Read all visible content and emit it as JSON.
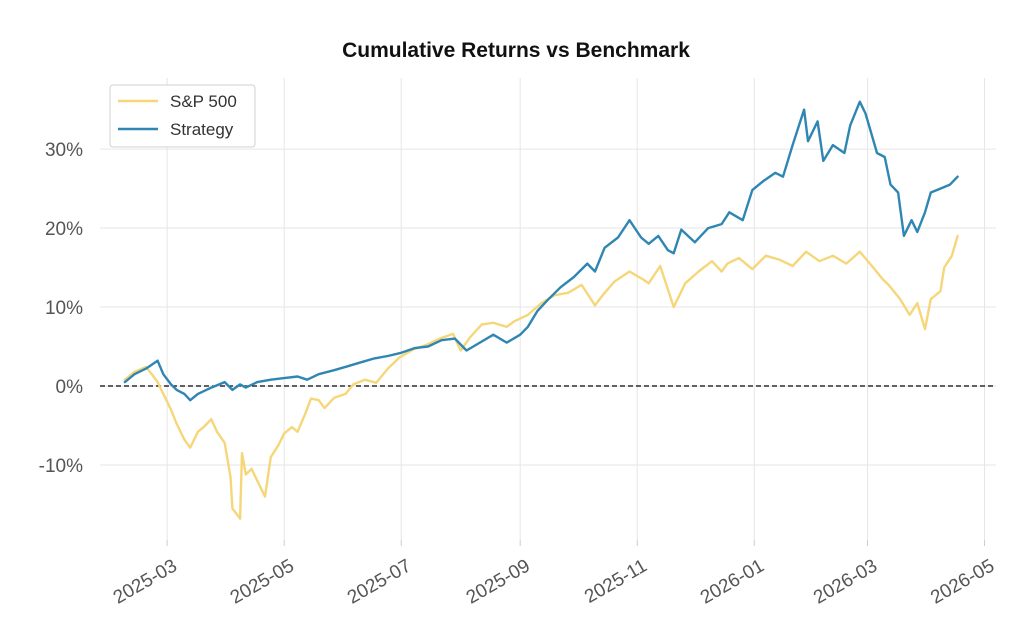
{
  "chart_data": {
    "type": "line",
    "title": "Cumulative Returns vs Benchmark",
    "xlabel": "",
    "ylabel": "",
    "xlim": [
      "2025-01-25",
      "2026-05-07"
    ],
    "ylim": [
      -19.5,
      39
    ],
    "grid": true,
    "legend_position": "top-left",
    "x_ticks": [
      "2025-03-01",
      "2025-05-01",
      "2025-07-01",
      "2025-09-01",
      "2025-11-01",
      "2026-01-01",
      "2026-03-01",
      "2026-05-01"
    ],
    "x_tick_labels": [
      "2025-03",
      "2025-05",
      "2025-07",
      "2025-09",
      "2025-11",
      "2026-01",
      "2026-03",
      "2026-05"
    ],
    "y_ticks": [
      -10,
      0,
      10,
      20,
      30
    ],
    "y_tick_labels": [
      "-10%",
      "0%",
      "10%",
      "20%",
      "30%"
    ],
    "reference_line": {
      "y": 0,
      "style": "dashed",
      "color": "#000000"
    },
    "series": [
      {
        "name": "S&P 500",
        "color": "#f5d77a",
        "points": [
          [
            "2025-02-07",
            0.8
          ],
          [
            "2025-02-12",
            1.8
          ],
          [
            "2025-02-18",
            2.4
          ],
          [
            "2025-02-21",
            1.5
          ],
          [
            "2025-02-24",
            0.5
          ],
          [
            "2025-02-27",
            -1.0
          ],
          [
            "2025-03-03",
            -3.0
          ],
          [
            "2025-03-06",
            -4.8
          ],
          [
            "2025-03-10",
            -6.8
          ],
          [
            "2025-03-13",
            -7.8
          ],
          [
            "2025-03-17",
            -5.8
          ],
          [
            "2025-03-20",
            -5.2
          ],
          [
            "2025-03-24",
            -4.2
          ],
          [
            "2025-03-27",
            -5.8
          ],
          [
            "2025-03-31",
            -7.2
          ],
          [
            "2025-04-03",
            -11.5
          ],
          [
            "2025-04-04",
            -15.5
          ],
          [
            "2025-04-08",
            -16.8
          ],
          [
            "2025-04-09",
            -8.5
          ],
          [
            "2025-04-11",
            -11.2
          ],
          [
            "2025-04-14",
            -10.5
          ],
          [
            "2025-04-17",
            -12.0
          ],
          [
            "2025-04-21",
            -14.0
          ],
          [
            "2025-04-24",
            -9.0
          ],
          [
            "2025-04-28",
            -7.5
          ],
          [
            "2025-05-01",
            -6.0
          ],
          [
            "2025-05-05",
            -5.2
          ],
          [
            "2025-05-08",
            -5.8
          ],
          [
            "2025-05-12",
            -3.5
          ],
          [
            "2025-05-15",
            -1.6
          ],
          [
            "2025-05-19",
            -1.8
          ],
          [
            "2025-05-22",
            -2.8
          ],
          [
            "2025-05-27",
            -1.5
          ],
          [
            "2025-06-02",
            -1.0
          ],
          [
            "2025-06-06",
            0.2
          ],
          [
            "2025-06-12",
            0.8
          ],
          [
            "2025-06-18",
            0.4
          ],
          [
            "2025-06-24",
            2.2
          ],
          [
            "2025-06-30",
            3.6
          ],
          [
            "2025-07-07",
            4.6
          ],
          [
            "2025-07-14",
            5.2
          ],
          [
            "2025-07-21",
            6.0
          ],
          [
            "2025-07-28",
            6.6
          ],
          [
            "2025-08-01",
            4.5
          ],
          [
            "2025-08-06",
            6.2
          ],
          [
            "2025-08-12",
            7.8
          ],
          [
            "2025-08-18",
            8.0
          ],
          [
            "2025-08-25",
            7.5
          ],
          [
            "2025-08-29",
            8.2
          ],
          [
            "2025-09-05",
            9.0
          ],
          [
            "2025-09-12",
            10.5
          ],
          [
            "2025-09-19",
            11.5
          ],
          [
            "2025-09-26",
            11.8
          ],
          [
            "2025-10-03",
            12.8
          ],
          [
            "2025-10-10",
            10.2
          ],
          [
            "2025-10-14",
            11.5
          ],
          [
            "2025-10-20",
            13.2
          ],
          [
            "2025-10-28",
            14.5
          ],
          [
            "2025-11-04",
            13.5
          ],
          [
            "2025-11-07",
            13.0
          ],
          [
            "2025-11-13",
            15.2
          ],
          [
            "2025-11-20",
            10.0
          ],
          [
            "2025-11-26",
            13.0
          ],
          [
            "2025-12-03",
            14.5
          ],
          [
            "2025-12-10",
            15.8
          ],
          [
            "2025-12-15",
            14.5
          ],
          [
            "2025-12-18",
            15.5
          ],
          [
            "2025-12-24",
            16.2
          ],
          [
            "2025-12-31",
            14.8
          ],
          [
            "2026-01-07",
            16.5
          ],
          [
            "2026-01-14",
            16.0
          ],
          [
            "2026-01-21",
            15.2
          ],
          [
            "2026-01-28",
            17.0
          ],
          [
            "2026-02-04",
            15.8
          ],
          [
            "2026-02-11",
            16.5
          ],
          [
            "2026-02-18",
            15.5
          ],
          [
            "2026-02-25",
            17.0
          ],
          [
            "2026-03-04",
            15.0
          ],
          [
            "2026-03-09",
            13.5
          ],
          [
            "2026-03-12",
            12.8
          ],
          [
            "2026-03-18",
            11.0
          ],
          [
            "2026-03-23",
            9.0
          ],
          [
            "2026-03-27",
            10.5
          ],
          [
            "2026-03-31",
            7.2
          ],
          [
            "2026-04-03",
            11.0
          ],
          [
            "2026-04-08",
            12.0
          ],
          [
            "2026-04-10",
            15.0
          ],
          [
            "2026-04-14",
            16.5
          ],
          [
            "2026-04-17",
            19.0
          ]
        ]
      },
      {
        "name": "Strategy",
        "color": "#2f86b3",
        "points": [
          [
            "2025-02-07",
            0.5
          ],
          [
            "2025-02-12",
            1.5
          ],
          [
            "2025-02-18",
            2.2
          ],
          [
            "2025-02-24",
            3.2
          ],
          [
            "2025-02-27",
            1.5
          ],
          [
            "2025-03-03",
            0.2
          ],
          [
            "2025-03-06",
            -0.5
          ],
          [
            "2025-03-10",
            -1.0
          ],
          [
            "2025-03-13",
            -1.8
          ],
          [
            "2025-03-17",
            -1.0
          ],
          [
            "2025-03-24",
            -0.2
          ],
          [
            "2025-03-31",
            0.5
          ],
          [
            "2025-04-04",
            -0.5
          ],
          [
            "2025-04-08",
            0.2
          ],
          [
            "2025-04-11",
            -0.2
          ],
          [
            "2025-04-17",
            0.5
          ],
          [
            "2025-04-24",
            0.8
          ],
          [
            "2025-05-01",
            1.0
          ],
          [
            "2025-05-08",
            1.2
          ],
          [
            "2025-05-13",
            0.8
          ],
          [
            "2025-05-19",
            1.5
          ],
          [
            "2025-05-27",
            2.0
          ],
          [
            "2025-06-03",
            2.5
          ],
          [
            "2025-06-10",
            3.0
          ],
          [
            "2025-06-17",
            3.5
          ],
          [
            "2025-06-24",
            3.8
          ],
          [
            "2025-07-01",
            4.2
          ],
          [
            "2025-07-08",
            4.8
          ],
          [
            "2025-07-15",
            5.0
          ],
          [
            "2025-07-22",
            5.8
          ],
          [
            "2025-07-29",
            6.0
          ],
          [
            "2025-08-04",
            4.5
          ],
          [
            "2025-08-11",
            5.5
          ],
          [
            "2025-08-18",
            6.5
          ],
          [
            "2025-08-25",
            5.5
          ],
          [
            "2025-09-01",
            6.5
          ],
          [
            "2025-09-05",
            7.5
          ],
          [
            "2025-09-10",
            9.5
          ],
          [
            "2025-09-15",
            10.8
          ],
          [
            "2025-09-22",
            12.5
          ],
          [
            "2025-09-29",
            13.8
          ],
          [
            "2025-10-06",
            15.5
          ],
          [
            "2025-10-10",
            14.5
          ],
          [
            "2025-10-15",
            17.5
          ],
          [
            "2025-10-22",
            18.8
          ],
          [
            "2025-10-28",
            21.0
          ],
          [
            "2025-11-03",
            18.8
          ],
          [
            "2025-11-07",
            18.0
          ],
          [
            "2025-11-12",
            19.0
          ],
          [
            "2025-11-17",
            17.2
          ],
          [
            "2025-11-20",
            16.8
          ],
          [
            "2025-11-24",
            19.8
          ],
          [
            "2025-12-01",
            18.2
          ],
          [
            "2025-12-08",
            20.0
          ],
          [
            "2025-12-15",
            20.5
          ],
          [
            "2025-12-19",
            22.0
          ],
          [
            "2025-12-26",
            21.0
          ],
          [
            "2025-12-31",
            24.8
          ],
          [
            "2026-01-06",
            26.0
          ],
          [
            "2026-01-12",
            27.0
          ],
          [
            "2026-01-16",
            26.5
          ],
          [
            "2026-01-21",
            30.5
          ],
          [
            "2026-01-27",
            35.0
          ],
          [
            "2026-01-29",
            31.0
          ],
          [
            "2026-02-03",
            33.5
          ],
          [
            "2026-02-06",
            28.5
          ],
          [
            "2026-02-11",
            30.5
          ],
          [
            "2026-02-17",
            29.5
          ],
          [
            "2026-02-20",
            33.0
          ],
          [
            "2026-02-25",
            36.0
          ],
          [
            "2026-02-28",
            34.5
          ],
          [
            "2026-03-03",
            32.0
          ],
          [
            "2026-03-06",
            29.5
          ],
          [
            "2026-03-10",
            29.0
          ],
          [
            "2026-03-13",
            25.5
          ],
          [
            "2026-03-17",
            24.5
          ],
          [
            "2026-03-20",
            19.0
          ],
          [
            "2026-03-24",
            21.0
          ],
          [
            "2026-03-27",
            19.5
          ],
          [
            "2026-03-31",
            22.0
          ],
          [
            "2026-04-03",
            24.5
          ],
          [
            "2026-04-08",
            25.0
          ],
          [
            "2026-04-13",
            25.5
          ],
          [
            "2026-04-17",
            26.5
          ]
        ]
      }
    ]
  }
}
